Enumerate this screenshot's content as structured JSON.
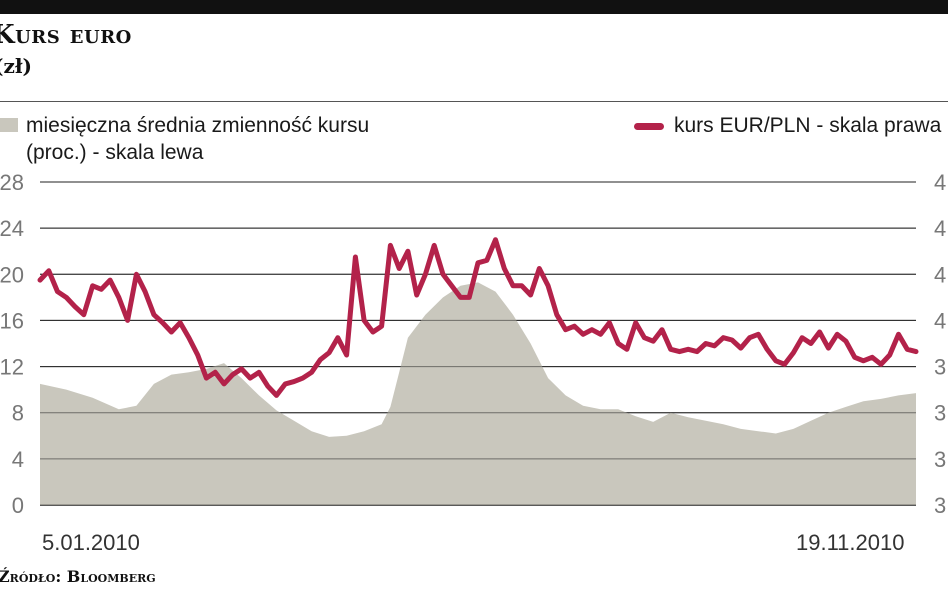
{
  "header": {
    "title": "Kurs euro",
    "subtitle": "(zł)",
    "source": "Źródło: Bloomberg"
  },
  "legend": {
    "left_label": "miesięczna średnia zmienność kursu (proc.) - skala lewa",
    "right_label": "kurs EUR/PLN - skala prawa"
  },
  "dates": {
    "start": "5.01.2010",
    "end": "19.11.2010"
  },
  "colors": {
    "area": "#c9c7bd",
    "line": "#b3224a",
    "grid": "#222222"
  },
  "chart_data": {
    "type": "area+line",
    "title": "Kurs euro (zł)",
    "x_label": "",
    "left_axis": {
      "label": "miesięczna średnia zmienność kursu (proc.) - skala lewa",
      "ticks": [
        0,
        4,
        8,
        12,
        16,
        20,
        24,
        28
      ],
      "range": [
        0,
        28
      ]
    },
    "right_axis": {
      "label": "kurs EUR/PLN - skala prawa",
      "note": "tick labels cut off at the right edge of the image",
      "ticks": [
        "3",
        "3",
        "3",
        "3",
        "4",
        "4",
        "4",
        "4"
      ]
    },
    "x_range_labels": [
      "5.01.2010",
      "19.11.2010"
    ],
    "series": [
      {
        "name": "miesięczna średnia zmienność kursu (proc.)",
        "kind": "area",
        "axis": "left",
        "points": [
          [
            0,
            10.5
          ],
          [
            3,
            10
          ],
          [
            6,
            9.3
          ],
          [
            9,
            8.3
          ],
          [
            11,
            8.6
          ],
          [
            13,
            10.5
          ],
          [
            15,
            11.3
          ],
          [
            17,
            11.5
          ],
          [
            19,
            11.8
          ],
          [
            21,
            12.3
          ],
          [
            23,
            11
          ],
          [
            25,
            9.5
          ],
          [
            27,
            8.2
          ],
          [
            29,
            7.3
          ],
          [
            31,
            6.4
          ],
          [
            33,
            5.9
          ],
          [
            35,
            6
          ],
          [
            37,
            6.4
          ],
          [
            39,
            7
          ],
          [
            40,
            8.5
          ],
          [
            41,
            11.5
          ],
          [
            42,
            14.5
          ],
          [
            44,
            16.5
          ],
          [
            46,
            18
          ],
          [
            48,
            19
          ],
          [
            50,
            19.3
          ],
          [
            52,
            18.5
          ],
          [
            54,
            16.5
          ],
          [
            56,
            14
          ],
          [
            58,
            11
          ],
          [
            60,
            9.5
          ],
          [
            62,
            8.6
          ],
          [
            64,
            8.3
          ],
          [
            66,
            8.3
          ],
          [
            68,
            7.7
          ],
          [
            70,
            7.2
          ],
          [
            72,
            8
          ],
          [
            74,
            7.6
          ],
          [
            76,
            7.3
          ],
          [
            78,
            7
          ],
          [
            80,
            6.6
          ],
          [
            82,
            6.4
          ],
          [
            84,
            6.2
          ],
          [
            86,
            6.6
          ],
          [
            88,
            7.3
          ],
          [
            90,
            8
          ],
          [
            92,
            8.5
          ],
          [
            94,
            9
          ],
          [
            96,
            9.2
          ],
          [
            98,
            9.5
          ],
          [
            100,
            9.7
          ]
        ]
      },
      {
        "name": "kurs EUR/PLN",
        "kind": "line",
        "axis": "right",
        "points": [
          [
            0,
            19.5
          ],
          [
            1,
            20.3
          ],
          [
            2,
            18.5
          ],
          [
            3,
            18
          ],
          [
            4,
            17.2
          ],
          [
            5,
            16.5
          ],
          [
            6,
            19
          ],
          [
            7,
            18.7
          ],
          [
            8,
            19.5
          ],
          [
            9,
            18
          ],
          [
            10,
            16
          ],
          [
            11,
            20
          ],
          [
            12,
            18.5
          ],
          [
            13,
            16.5
          ],
          [
            14,
            15.8
          ],
          [
            15,
            15
          ],
          [
            16,
            15.8
          ],
          [
            17,
            14.5
          ],
          [
            18,
            13
          ],
          [
            19,
            11
          ],
          [
            20,
            11.5
          ],
          [
            21,
            10.5
          ],
          [
            22,
            11.3
          ],
          [
            23,
            11.8
          ],
          [
            24,
            11
          ],
          [
            25,
            11.5
          ],
          [
            26,
            10.3
          ],
          [
            27,
            9.5
          ],
          [
            28,
            10.5
          ],
          [
            29,
            10.7
          ],
          [
            30,
            11
          ],
          [
            31,
            11.5
          ],
          [
            32,
            12.6
          ],
          [
            33,
            13.2
          ],
          [
            34,
            14.5
          ],
          [
            35,
            13
          ],
          [
            36,
            21.5
          ],
          [
            37,
            16
          ],
          [
            38,
            15
          ],
          [
            39,
            15.5
          ],
          [
            40,
            22.5
          ],
          [
            41,
            20.5
          ],
          [
            42,
            22
          ],
          [
            43,
            18.2
          ],
          [
            44,
            20
          ],
          [
            45,
            22.5
          ],
          [
            46,
            20
          ],
          [
            47,
            19
          ],
          [
            48,
            18
          ],
          [
            49,
            18
          ],
          [
            50,
            21
          ],
          [
            51,
            21.2
          ],
          [
            52,
            23
          ],
          [
            53,
            20.5
          ],
          [
            54,
            19
          ],
          [
            55,
            19
          ],
          [
            56,
            18.2
          ],
          [
            57,
            20.5
          ],
          [
            58,
            19
          ],
          [
            59,
            16.5
          ],
          [
            60,
            15.2
          ],
          [
            61,
            15.5
          ],
          [
            62,
            14.8
          ],
          [
            63,
            15.2
          ],
          [
            64,
            14.8
          ],
          [
            65,
            15.8
          ],
          [
            66,
            14
          ],
          [
            67,
            13.5
          ],
          [
            68,
            15.8
          ],
          [
            69,
            14.5
          ],
          [
            70,
            14.2
          ],
          [
            71,
            15.2
          ],
          [
            72,
            13.5
          ],
          [
            73,
            13.3
          ],
          [
            74,
            13.5
          ],
          [
            75,
            13.3
          ],
          [
            76,
            14
          ],
          [
            77,
            13.8
          ],
          [
            78,
            14.5
          ],
          [
            79,
            14.3
          ],
          [
            80,
            13.6
          ],
          [
            81,
            14.5
          ],
          [
            82,
            14.8
          ],
          [
            83,
            13.5
          ],
          [
            84,
            12.5
          ],
          [
            85,
            12.2
          ],
          [
            86,
            13.2
          ],
          [
            87,
            14.5
          ],
          [
            88,
            14
          ],
          [
            89,
            15
          ],
          [
            90,
            13.6
          ],
          [
            91,
            14.8
          ],
          [
            92,
            14.2
          ],
          [
            93,
            12.8
          ],
          [
            94,
            12.5
          ],
          [
            95,
            12.8
          ],
          [
            96,
            12.2
          ],
          [
            97,
            13
          ],
          [
            98,
            14.8
          ],
          [
            99,
            13.5
          ],
          [
            100,
            13.3
          ]
        ]
      }
    ]
  }
}
